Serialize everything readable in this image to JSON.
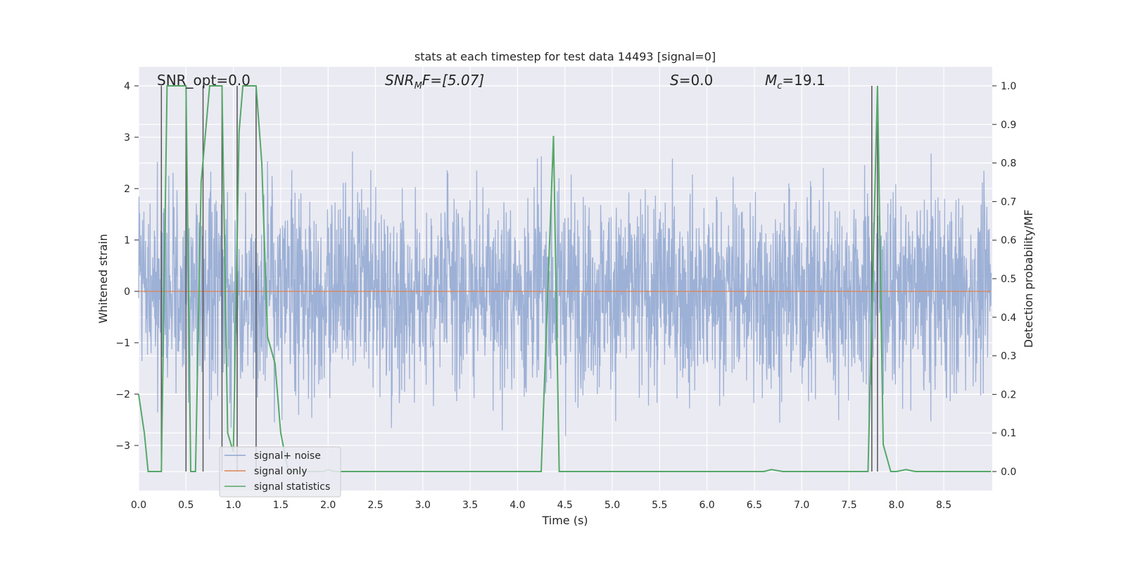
{
  "chart_data": {
    "type": "line",
    "title": "stats at each timestep for test data 14493 [signal=0]",
    "xlabel": "Time (s)",
    "ylabel_left": "Whitened strain",
    "ylabel_right": "Detection probability/MF",
    "xlim": [
      0.0,
      9.0
    ],
    "ylim_left": [
      -3.85,
      4.35
    ],
    "ylim_right": [
      -0.05,
      1.04
    ],
    "x_ticks": [
      "0.0",
      "0.5",
      "1.0",
      "1.5",
      "2.0",
      "2.5",
      "3.0",
      "3.5",
      "4.0",
      "4.5",
      "5.0",
      "5.5",
      "6.0",
      "6.5",
      "7.0",
      "7.5",
      "8.0",
      "8.5"
    ],
    "x_tick_values": [
      0.0,
      0.5,
      1.0,
      1.5,
      2.0,
      2.5,
      3.0,
      3.5,
      4.0,
      4.5,
      5.0,
      5.5,
      6.0,
      6.5,
      7.0,
      7.5,
      8.0,
      8.5
    ],
    "y_left_ticks": [
      "4",
      "3",
      "2",
      "1",
      "0",
      "−1",
      "−2",
      "−3"
    ],
    "y_left_tick_values": [
      4,
      3,
      2,
      1,
      0,
      -1,
      -2,
      -3
    ],
    "y_right_ticks": [
      "1.0",
      "0.9",
      "0.8",
      "0.7",
      "0.6",
      "0.5",
      "0.4",
      "0.3",
      "0.2",
      "0.1",
      "0.0"
    ],
    "y_right_tick_values": [
      1.0,
      0.9,
      0.8,
      0.7,
      0.6,
      0.5,
      0.4,
      0.3,
      0.2,
      0.1,
      0.0
    ],
    "grid": true,
    "legend_position": "lower-left",
    "annotations": {
      "snr_opt": "SNR_opt=0.0",
      "snr_mf_base": "SNR",
      "snr_mf_sub": "M",
      "snr_mf_rest": "F=[5.07]",
      "s_italic": "S",
      "s_rest": "=0.0",
      "mc_base": "M",
      "mc_sub": "c",
      "mc_rest": "=19.1"
    },
    "series": [
      {
        "name": "signal+ noise",
        "color": "#8fa6d0",
        "axis": "left",
        "kind": "noise",
        "amplitude_range": [
          -3.4,
          4.0
        ]
      },
      {
        "name": "signal only",
        "color": "#dd8452",
        "axis": "left",
        "x": [
          0.0,
          9.0
        ],
        "y": [
          0.0,
          0.0
        ]
      },
      {
        "name": "signal statistics",
        "color": "#55a868",
        "axis": "right",
        "x": [
          0.0,
          0.06,
          0.1,
          0.15,
          0.24,
          0.3,
          0.36,
          0.45,
          0.5,
          0.55,
          0.6,
          0.66,
          0.75,
          0.8,
          0.88,
          0.94,
          1.0,
          1.06,
          1.1,
          1.18,
          1.24,
          1.3,
          1.36,
          1.44,
          1.5,
          1.58,
          1.66,
          1.75,
          1.85,
          1.95,
          2.0,
          2.06,
          2.15,
          3.0,
          4.0,
          4.25,
          4.38,
          4.44,
          5.0,
          6.0,
          6.6,
          6.68,
          6.8,
          7.0,
          7.7,
          7.8,
          7.86,
          7.94,
          8.0,
          8.1,
          8.2,
          9.0
        ],
        "y": [
          0.2,
          0.1,
          0.0,
          0.0,
          0.0,
          1.0,
          1.0,
          1.0,
          1.0,
          0.0,
          0.0,
          0.75,
          1.0,
          1.0,
          1.0,
          0.1,
          0.05,
          0.88,
          1.0,
          1.0,
          1.0,
          0.8,
          0.35,
          0.28,
          0.1,
          0.0,
          0.0,
          0.0,
          0.0,
          0.0,
          0.005,
          0.0,
          0.0,
          0.0,
          0.0,
          0.0,
          0.87,
          0.0,
          0.0,
          0.0,
          0.0,
          0.005,
          0.0,
          0.0,
          0.0,
          1.0,
          0.07,
          0.0,
          0.0,
          0.005,
          0.0,
          0.0
        ]
      },
      {
        "name": "",
        "color": "#555555",
        "axis": "right",
        "kind": "vlines",
        "x": [
          0.24,
          0.5,
          0.68,
          0.88,
          1.04,
          1.24,
          7.74,
          7.8
        ]
      }
    ]
  },
  "colors": {
    "axes_bg": "#eaeaf2",
    "grid": "#ffffff",
    "text": "#262626"
  }
}
